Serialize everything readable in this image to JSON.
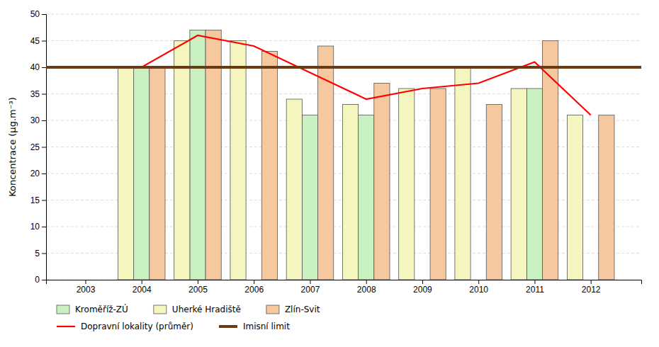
{
  "chart_data": {
    "type": "bar",
    "x": [
      2003,
      2004,
      2005,
      2006,
      2007,
      2008,
      2009,
      2010,
      2011,
      2012
    ],
    "xlim": [
      2002.3,
      2012.9
    ],
    "xticks": [
      2003,
      2004,
      2005,
      2006,
      2007,
      2008,
      2009,
      2010,
      2011,
      2012
    ],
    "ylim": [
      0,
      50
    ],
    "yticks": [
      0,
      5,
      10,
      15,
      20,
      25,
      30,
      35,
      40,
      45,
      50
    ],
    "ylabel": "Koncentrace (µg.m⁻³)",
    "grid": true,
    "legend": "bottom",
    "series": [
      {
        "name": "Kroměříž-ZÚ",
        "type": "bar",
        "color": "#c8f0c0",
        "values": [
          null,
          40,
          47,
          null,
          31,
          31,
          null,
          null,
          36,
          null
        ]
      },
      {
        "name": "Uherké Hradiště",
        "type": "bar",
        "color": "#f5f5c0",
        "values": [
          null,
          40,
          45,
          45,
          34,
          33,
          36,
          40,
          36,
          31
        ]
      },
      {
        "name": "Zlín-Svit",
        "type": "bar",
        "color": "#f5c8a0",
        "values": [
          null,
          40,
          47,
          43,
          44,
          37,
          36,
          33,
          45,
          31
        ]
      },
      {
        "name": "Dopravní lokality (průměr)",
        "type": "line",
        "color": "#ff0000",
        "values": [
          40,
          40,
          46,
          44,
          39,
          34,
          36,
          37,
          41,
          31
        ]
      },
      {
        "name": "Imisní limit",
        "type": "hline",
        "color": "#6b3a10",
        "value": 40
      }
    ]
  }
}
